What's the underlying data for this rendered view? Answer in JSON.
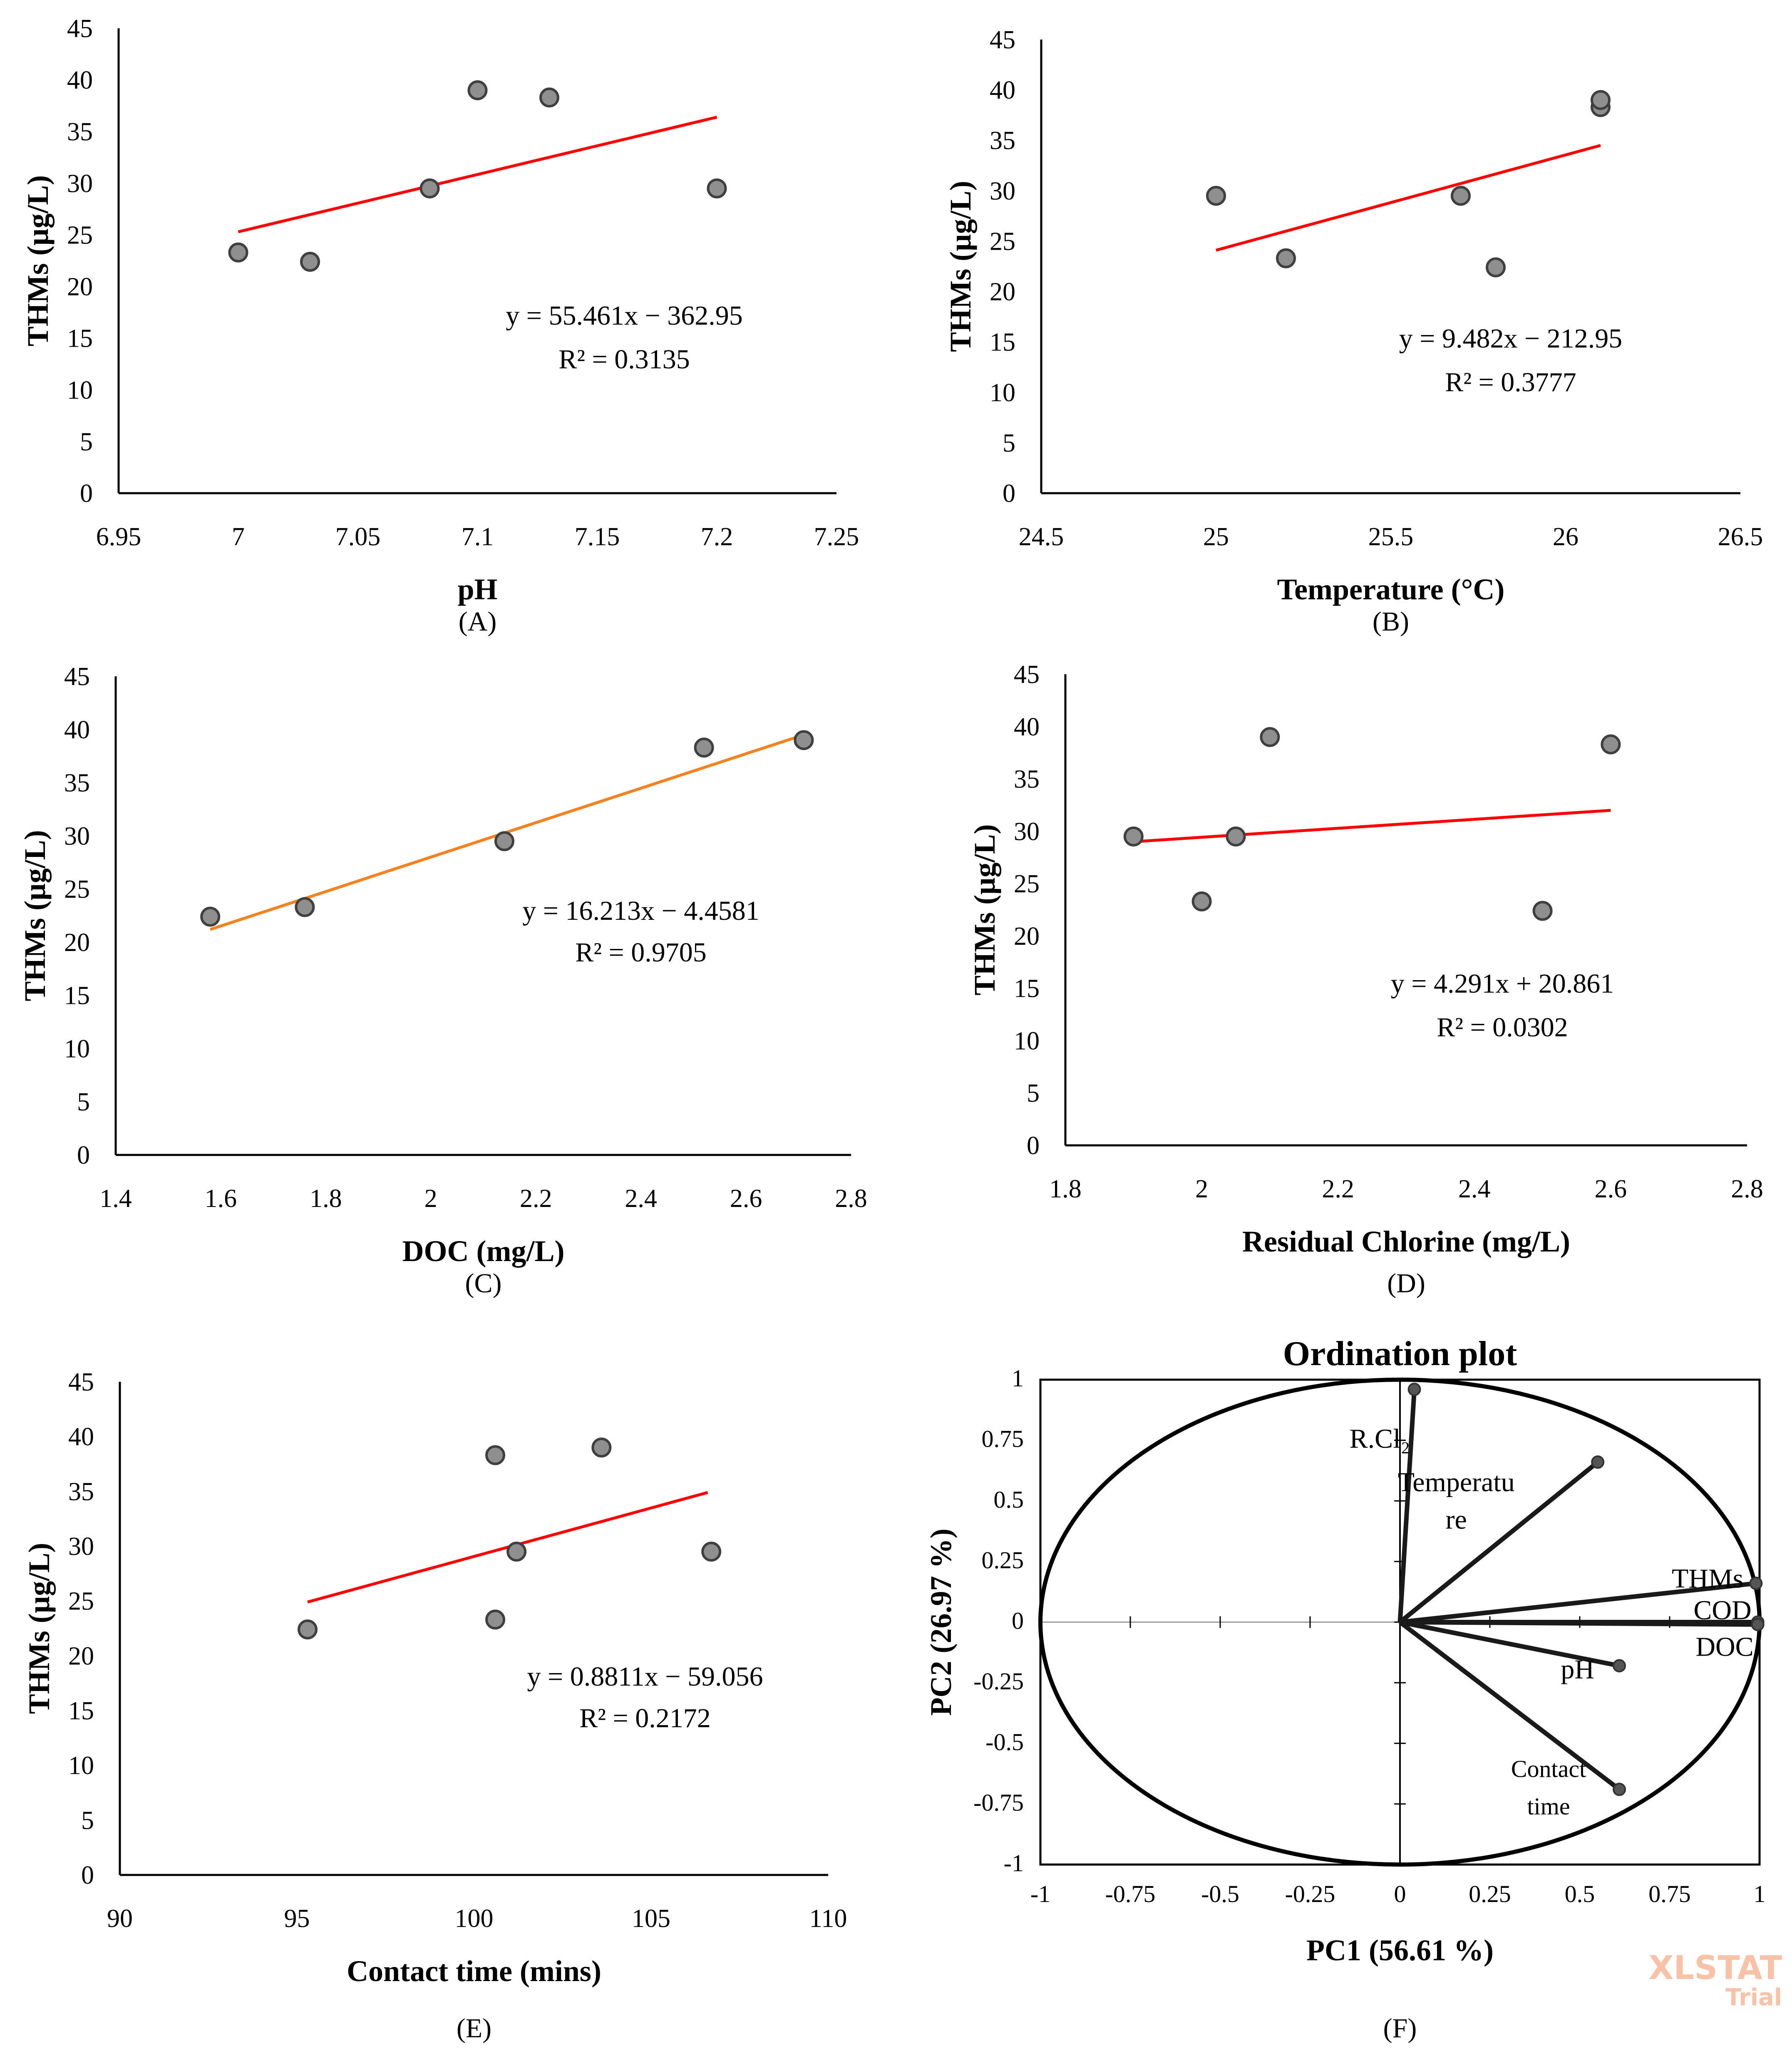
{
  "chart_data": [
    {
      "panel": "A",
      "type": "scatter",
      "panel_label": "(A)",
      "xlabel": "pH",
      "ylabel": "THMs (µg/L)",
      "xlim": [
        6.95,
        7.25
      ],
      "ylim": [
        0,
        45
      ],
      "xticks": [
        "6.95",
        "7",
        "7.05",
        "7.1",
        "7.15",
        "7.2",
        "7.25"
      ],
      "yticks": [
        "0",
        "5",
        "10",
        "15",
        "20",
        "25",
        "30",
        "35",
        "40",
        "45"
      ],
      "points": [
        [
          7.0,
          23.3
        ],
        [
          7.03,
          22.4
        ],
        [
          7.08,
          29.5
        ],
        [
          7.1,
          39.0
        ],
        [
          7.13,
          38.3
        ],
        [
          7.2,
          29.5
        ]
      ],
      "trendline": {
        "x": [
          7.0,
          7.2
        ],
        "y": [
          25.3,
          36.4
        ],
        "color": "#ff0000"
      },
      "equation": "y = 55.461x − 362.95",
      "r2": "R² = 0.3135"
    },
    {
      "panel": "B",
      "type": "scatter",
      "panel_label": "(B)",
      "xlabel": "Temperature (°C)",
      "ylabel": "THMs (µg/L)",
      "xlim": [
        24.5,
        26.5
      ],
      "ylim": [
        0,
        45
      ],
      "xticks": [
        "24.5",
        "25",
        "25.5",
        "26",
        "26.5"
      ],
      "yticks": [
        "0",
        "5",
        "10",
        "15",
        "20",
        "25",
        "30",
        "35",
        "40",
        "45"
      ],
      "points": [
        [
          25.0,
          29.5
        ],
        [
          25.2,
          23.3
        ],
        [
          25.7,
          29.5
        ],
        [
          25.8,
          22.4
        ],
        [
          26.1,
          38.3
        ],
        [
          26.1,
          39.0
        ]
      ],
      "trendline": {
        "x": [
          25.0,
          26.1
        ],
        "y": [
          24.1,
          34.5
        ],
        "color": "#ff0000"
      },
      "equation": "y = 9.482x − 212.95",
      "r2": "R² = 0.3777"
    },
    {
      "panel": "C",
      "type": "scatter",
      "panel_label": "(C)",
      "xlabel": "DOC (mg/L)",
      "ylabel": "THMs (µg/L)",
      "xlim": [
        1.4,
        2.8
      ],
      "ylim": [
        0,
        45
      ],
      "xticks": [
        "1.4",
        "1.6",
        "1.8",
        "2",
        "2.2",
        "2.4",
        "2.6",
        "2.8"
      ],
      "yticks": [
        "0",
        "5",
        "10",
        "15",
        "20",
        "25",
        "30",
        "35",
        "40",
        "45"
      ],
      "points": [
        [
          1.58,
          22.4
        ],
        [
          1.76,
          23.3
        ],
        [
          2.14,
          29.5
        ],
        [
          2.52,
          38.3
        ],
        [
          2.71,
          39.0
        ]
      ],
      "trendline": {
        "x": [
          1.58,
          2.71
        ],
        "y": [
          21.2,
          39.5
        ],
        "color": "#f5821f"
      },
      "equation": "y = 16.213x − 4.4581",
      "r2": "R² = 0.9705"
    },
    {
      "panel": "D",
      "type": "scatter",
      "panel_label": "(D)",
      "xlabel": "Residual Chlorine (mg/L)",
      "ylabel": "THMs (µg/L)",
      "xlim": [
        1.8,
        2.8
      ],
      "ylim": [
        0,
        45
      ],
      "xticks": [
        "1.8",
        "2",
        "2.2",
        "2.4",
        "2.6",
        "2.8"
      ],
      "yticks": [
        "0",
        "5",
        "10",
        "15",
        "20",
        "25",
        "30",
        "35",
        "40",
        "45"
      ],
      "points": [
        [
          1.9,
          29.5
        ],
        [
          2.0,
          23.3
        ],
        [
          2.05,
          29.5
        ],
        [
          2.1,
          39.0
        ],
        [
          2.5,
          22.4
        ],
        [
          2.6,
          38.3
        ]
      ],
      "trendline": {
        "x": [
          1.9,
          2.6
        ],
        "y": [
          29.0,
          32.0
        ],
        "color": "#ff0000"
      },
      "equation": "y = 4.291x + 20.861",
      "r2": "R² = 0.0302"
    },
    {
      "panel": "E",
      "type": "scatter",
      "panel_label": "(E)",
      "xlabel": "Contact time (mins)",
      "ylabel": "THMs (µg/L)",
      "xlim": [
        90,
        110
      ],
      "ylim": [
        0,
        45
      ],
      "xticks": [
        "90",
        "95",
        "100",
        "105",
        "110"
      ],
      "yticks": [
        "0",
        "5",
        "10",
        "15",
        "20",
        "25",
        "30",
        "35",
        "40",
        "45"
      ],
      "points": [
        [
          95.3,
          22.4
        ],
        [
          100.6,
          23.3
        ],
        [
          100.6,
          38.3
        ],
        [
          101.2,
          29.5
        ],
        [
          103.6,
          39.0
        ],
        [
          106.7,
          29.5
        ]
      ],
      "trendline": {
        "x": [
          95.3,
          106.6
        ],
        "y": [
          24.9,
          34.9
        ],
        "color": "#ff0000"
      },
      "equation": "y = 0.8811x − 59.056",
      "r2": "R² = 0.2172"
    },
    {
      "panel": "F",
      "type": "scatter",
      "title": "Ordination plot",
      "panel_label": "(F)",
      "xlabel": "PC1 (56.61 %)",
      "ylabel": "PC2 (26.97 %)",
      "xlim": [
        -1,
        1
      ],
      "ylim": [
        -1,
        1
      ],
      "xticks": [
        "-1",
        "-0.75",
        "-0.5",
        "-0.25",
        "0",
        "0.25",
        "0.5",
        "0.75",
        "1"
      ],
      "yticks": [
        "-1",
        "-0.75",
        "-0.5",
        "-0.25",
        "0",
        "0.25",
        "0.5",
        "0.75",
        "1"
      ],
      "vectors": [
        {
          "name": "R.Cl₂",
          "lines": [
            "R.Cl₂"
          ],
          "x": 0.04,
          "y": 0.96
        },
        {
          "name": "Temperature",
          "lines": [
            "Temperatu",
            "re"
          ],
          "x": 0.55,
          "y": 0.66
        },
        {
          "name": "THMs",
          "lines": [
            "THMs"
          ],
          "x": 0.99,
          "y": 0.16
        },
        {
          "name": "COD",
          "lines": [
            "COD"
          ],
          "x": 0.995,
          "y": 0.0
        },
        {
          "name": "DOC",
          "lines": [
            "DOC"
          ],
          "x": 0.995,
          "y": -0.01
        },
        {
          "name": "pH",
          "lines": [
            "pH"
          ],
          "x": 0.61,
          "y": -0.18
        },
        {
          "name": "Contact time",
          "lines": [
            "Contact",
            "time"
          ],
          "x": 0.61,
          "y": -0.69
        }
      ]
    }
  ],
  "watermark": {
    "brand": "XLSTAT",
    "sub": "Trial"
  }
}
